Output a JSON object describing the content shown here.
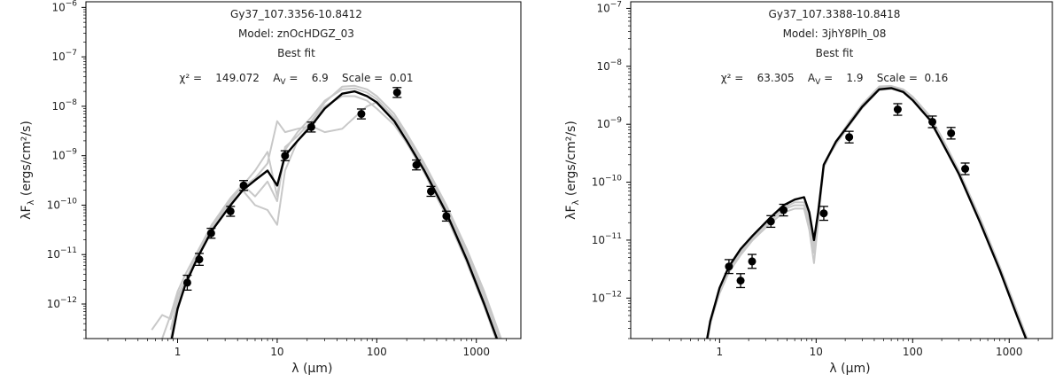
{
  "chart_data": [
    {
      "type": "line",
      "title_lines": [
        "Gy37_107.3356-10.8412",
        "Model: znOcHDGZ_03",
        "Best fit"
      ],
      "stats": {
        "chi2_label": "χ² =",
        "chi2": "149.072",
        "av_label": "A",
        "av_sub": "V",
        "av": "6.9",
        "scale_label": "Scale =",
        "scale": "0.01"
      },
      "xlabel": "λ (μm)",
      "ylabel": "λF",
      "ylabel_sub": "λ",
      "ylabel_unit": "(ergs/cm²/s)",
      "xscale": "log",
      "yscale": "log",
      "xlim": [
        0.12,
        2800
      ],
      "ylim": [
        2e-13,
        1.3e-06
      ],
      "xticks": [
        {
          "v": 1,
          "label": "1"
        },
        {
          "v": 10,
          "label": "10"
        },
        {
          "v": 100,
          "label": "100"
        },
        {
          "v": 1000,
          "label": "1000"
        }
      ],
      "yticks": [
        {
          "v": 1e-12,
          "label": "10",
          "exp": "−12"
        },
        {
          "v": 1e-11,
          "label": "10",
          "exp": "−11"
        },
        {
          "v": 1e-10,
          "label": "10",
          "exp": "−10"
        },
        {
          "v": 1e-09,
          "label": "10",
          "exp": "−9"
        },
        {
          "v": 1e-08,
          "label": "10",
          "exp": "−8"
        },
        {
          "v": 1e-07,
          "label": "10",
          "exp": "−7"
        },
        {
          "v": 1e-06,
          "label": "10",
          "exp": "−6"
        }
      ],
      "colors": {
        "best": "#000000",
        "alt": "#c8c8c8",
        "points": "#000000"
      },
      "series": [
        {
          "role": "best",
          "x": [
            0.85,
            1.0,
            1.2,
            1.6,
            2.2,
            3.4,
            4.5,
            6.0,
            8.0,
            10.0,
            12.0,
            16.0,
            22.0,
            30.0,
            45.0,
            60.0,
            80.0,
            100,
            150,
            200,
            300,
            500,
            800,
            1200,
            2000
          ],
          "y": [
            1.5e-13,
            8e-13,
            2.5e-12,
            9e-12,
            3e-11,
            1e-10,
            2e-10,
            3.2e-10,
            5e-10,
            2.5e-10,
            1e-09,
            2e-09,
            4e-09,
            9e-09,
            1.8e-08,
            2e-08,
            1.6e-08,
            1.2e-08,
            5e-09,
            2e-09,
            5e-10,
            7e-11,
            8e-12,
            1e-12,
            6e-14
          ]
        },
        {
          "role": "alt",
          "x": [
            0.55,
            0.7,
            0.85,
            1.0,
            1.2,
            1.6,
            2.2,
            3.4,
            4.5,
            6.0,
            8.0,
            10.0,
            12.0,
            16.0,
            22.0,
            30.0,
            45.0,
            60.0,
            80.0,
            100,
            150,
            200,
            300,
            500,
            800,
            1200,
            2000
          ],
          "y": [
            3e-13,
            6e-13,
            5e-13,
            1.5e-12,
            3e-12,
            1e-11,
            3.5e-11,
            1.2e-10,
            2.5e-10,
            5e-10,
            1.2e-09,
            1.5e-10,
            1.5e-09,
            2.5e-09,
            5e-09,
            1.2e-08,
            2.5e-08,
            2.6e-08,
            2.2e-08,
            1.6e-08,
            7e-09,
            2.8e-09,
            7e-10,
            1e-10,
            1.3e-11,
            1.8e-12,
            1e-13
          ]
        },
        {
          "role": "alt",
          "x": [
            0.7,
            0.85,
            1.0,
            1.2,
            1.6,
            2.2,
            3.4,
            4.5,
            6.0,
            8.0,
            10.0,
            12.0,
            16.0,
            22.0,
            30.0,
            45.0,
            60.0,
            80.0,
            100,
            150,
            200,
            300,
            500,
            800,
            1200,
            2000
          ],
          "y": [
            2e-13,
            6e-13,
            1.8e-12,
            4e-12,
            1.2e-11,
            4e-11,
            1.3e-10,
            2.3e-10,
            3.5e-10,
            7e-10,
            5e-09,
            3e-09,
            3.5e-09,
            4e-09,
            3e-09,
            3.5e-09,
            6e-09,
            1e-08,
            1.2e-08,
            5.5e-09,
            2.5e-09,
            6e-10,
            9e-11,
            1.1e-11,
            1.5e-12,
            8e-14
          ]
        },
        {
          "role": "alt",
          "x": [
            0.85,
            1.0,
            1.2,
            1.6,
            2.2,
            3.4,
            4.5,
            6.0,
            8.0,
            10.0,
            12.0,
            16.0,
            22.0,
            30.0,
            45.0,
            60.0,
            80.0,
            100,
            150,
            200,
            300,
            500,
            800,
            1200,
            2000
          ],
          "y": [
            3e-13,
            1.2e-12,
            3e-12,
            1e-11,
            3e-11,
            1.1e-10,
            2e-10,
            1e-10,
            8e-11,
            4e-11,
            5e-10,
            2e-09,
            4.5e-09,
            1e-08,
            1.6e-08,
            1.6e-08,
            1.3e-08,
            9e-09,
            4.2e-09,
            1.8e-09,
            4.5e-10,
            6e-11,
            7e-12,
            9e-13,
            5e-14
          ]
        },
        {
          "role": "alt",
          "x": [
            0.85,
            1.0,
            1.2,
            1.6,
            2.2,
            3.4,
            4.5,
            6.0,
            8.0,
            10.0,
            12.0,
            16.0,
            22.0,
            30.0,
            45.0,
            60.0,
            80.0,
            100,
            150,
            200,
            300,
            500,
            800,
            1200,
            2000
          ],
          "y": [
            2e-13,
            1e-12,
            3e-12,
            1.1e-11,
            4e-11,
            1.4e-10,
            2.6e-10,
            1.5e-10,
            3e-10,
            1.2e-10,
            1.3e-09,
            3e-09,
            6e-09,
            1.3e-08,
            2.2e-08,
            2.3e-08,
            1.9e-08,
            1.4e-08,
            6e-09,
            2.5e-09,
            6e-10,
            8e-11,
            1e-11,
            1.2e-12,
            7e-14
          ]
        }
      ],
      "points": [
        {
          "x": 1.25,
          "y": 2.7e-12,
          "err": 0.15
        },
        {
          "x": 1.65,
          "y": 8e-12,
          "err": 0.12
        },
        {
          "x": 2.17,
          "y": 2.7e-11,
          "err": 0.1
        },
        {
          "x": 3.4,
          "y": 7.5e-11,
          "err": 0.1
        },
        {
          "x": 4.6,
          "y": 2.5e-10,
          "err": 0.1
        },
        {
          "x": 12.0,
          "y": 1e-09,
          "err": 0.1
        },
        {
          "x": 22.0,
          "y": 3.8e-09,
          "err": 0.1
        },
        {
          "x": 70.0,
          "y": 7e-09,
          "err": 0.1
        },
        {
          "x": 160.0,
          "y": 1.9e-08,
          "err": 0.1
        },
        {
          "x": 250.0,
          "y": 6.5e-10,
          "err": 0.1
        },
        {
          "x": 350.0,
          "y": 1.9e-10,
          "err": 0.1
        },
        {
          "x": 500.0,
          "y": 6e-11,
          "err": 0.1
        }
      ]
    },
    {
      "type": "line",
      "title_lines": [
        "Gy37_107.3388-10.8418",
        "Model: 3jhY8Plh_08",
        "Best fit"
      ],
      "stats": {
        "chi2_label": "χ² =",
        "chi2": "63.305",
        "av_label": "A",
        "av_sub": "V",
        "av": "1.9",
        "scale_label": "Scale =",
        "scale": "0.16"
      },
      "xlabel": "λ (μm)",
      "ylabel": "λF",
      "ylabel_sub": "λ",
      "ylabel_unit": "(ergs/cm²/s)",
      "xscale": "log",
      "yscale": "log",
      "xlim": [
        0.12,
        2800
      ],
      "ylim": [
        2e-13,
        1.3e-07
      ],
      "xticks": [
        {
          "v": 1,
          "label": "1"
        },
        {
          "v": 10,
          "label": "10"
        },
        {
          "v": 100,
          "label": "100"
        },
        {
          "v": 1000,
          "label": "1000"
        }
      ],
      "yticks": [
        {
          "v": 1e-12,
          "label": "10",
          "exp": "−12"
        },
        {
          "v": 1e-11,
          "label": "10",
          "exp": "−11"
        },
        {
          "v": 1e-10,
          "label": "10",
          "exp": "−10"
        },
        {
          "v": 1e-09,
          "label": "10",
          "exp": "−9"
        },
        {
          "v": 1e-08,
          "label": "10",
          "exp": "−8"
        },
        {
          "v": 1e-07,
          "label": "10",
          "exp": "−7"
        }
      ],
      "colors": {
        "best": "#000000",
        "alt": "#c8c8c8",
        "points": "#000000"
      },
      "series": [
        {
          "role": "best",
          "x": [
            0.72,
            0.8,
            0.9,
            1.0,
            1.25,
            1.65,
            2.2,
            3.4,
            4.6,
            6.0,
            7.5,
            8.5,
            9.5,
            10.5,
            12.0,
            16.0,
            22.0,
            30.0,
            45.0,
            60.0,
            80.0,
            100,
            150,
            200,
            300,
            500,
            800,
            1200,
            1800
          ],
          "y": [
            1.5e-13,
            4e-13,
            8e-13,
            1.5e-12,
            3.5e-12,
            7e-12,
            1.2e-11,
            2.5e-11,
            4e-11,
            5e-11,
            5.5e-11,
            3e-11,
            1e-11,
            3e-11,
            2e-10,
            5e-10,
            1e-09,
            2e-09,
            4e-09,
            4.2e-09,
            3.6e-09,
            2.6e-09,
            1.2e-09,
            5e-10,
            1.4e-10,
            2e-11,
            3e-12,
            5e-13,
            9e-14
          ]
        },
        {
          "role": "alt",
          "x": [
            0.72,
            0.8,
            0.9,
            1.0,
            1.25,
            1.65,
            2.2,
            3.4,
            4.6,
            6.0,
            7.5,
            8.5,
            9.5,
            10.5,
            12.0,
            16.0,
            22.0,
            30.0,
            45.0,
            60.0,
            80.0,
            100,
            150,
            200,
            300,
            500,
            800,
            1200,
            1800
          ],
          "y": [
            1.2e-13,
            3.5e-13,
            7e-13,
            1.2e-12,
            2.8e-12,
            5.5e-12,
            1e-11,
            2e-11,
            3e-11,
            3.5e-11,
            3.5e-11,
            1.5e-11,
            4e-12,
            2e-11,
            1.8e-10,
            5e-10,
            1.1e-09,
            2.2e-09,
            4.5e-09,
            4.6e-09,
            4e-09,
            3e-09,
            1.4e-09,
            6e-10,
            1.6e-10,
            2.4e-11,
            3.5e-12,
            6e-13,
            1e-13
          ]
        },
        {
          "role": "alt",
          "x": [
            0.72,
            0.8,
            0.9,
            1.0,
            1.25,
            1.65,
            2.2,
            3.4,
            4.6,
            6.0,
            7.5,
            8.5,
            9.5,
            10.5,
            12.0,
            16.0,
            22.0,
            30.0,
            45.0,
            60.0,
            80.0,
            100,
            150,
            200,
            300,
            500,
            800,
            1200,
            1800
          ],
          "y": [
            1.3e-13,
            3.8e-13,
            7.5e-13,
            1.3e-12,
            3e-12,
            6e-12,
            1.1e-11,
            2.2e-11,
            3.4e-11,
            4e-11,
            4e-11,
            2e-11,
            6e-12,
            2.5e-11,
            1.9e-10,
            4.8e-10,
            1e-09,
            2e-09,
            4.2e-09,
            4.4e-09,
            3.9e-09,
            2.9e-09,
            1.3e-09,
            5.5e-10,
            1.5e-10,
            2.2e-11,
            3.2e-12,
            5.5e-13,
            9e-14
          ]
        },
        {
          "role": "alt",
          "x": [
            0.72,
            0.8,
            0.9,
            1.0,
            1.25,
            1.65,
            2.2,
            3.4,
            4.6,
            6.0,
            7.5,
            8.5,
            9.5,
            10.5,
            12.0,
            16.0,
            22.0,
            30.0,
            45.0,
            60.0,
            80.0,
            100,
            150,
            200,
            300,
            500,
            800,
            1200,
            1800
          ],
          "y": [
            1.4e-13,
            4e-13,
            8e-13,
            1.4e-12,
            3.2e-12,
            6.5e-12,
            1.1e-11,
            2.3e-11,
            3.6e-11,
            4.5e-11,
            4.5e-11,
            2.5e-11,
            8e-12,
            2.8e-11,
            2e-10,
            4.5e-10,
            9.5e-10,
            1.9e-09,
            3.9e-09,
            4.1e-09,
            3.7e-09,
            2.7e-09,
            1.2e-09,
            5e-10,
            1.4e-10,
            2e-11,
            3e-12,
            5e-13,
            9e-14
          ]
        }
      ],
      "points": [
        {
          "x": 1.25,
          "y": 3.5e-12,
          "err": 0.12
        },
        {
          "x": 1.65,
          "y": 2e-12,
          "err": 0.12
        },
        {
          "x": 2.17,
          "y": 4.3e-12,
          "err": 0.12
        },
        {
          "x": 3.4,
          "y": 2.1e-11,
          "err": 0.1
        },
        {
          "x": 4.6,
          "y": 3.3e-11,
          "err": 0.1
        },
        {
          "x": 12.0,
          "y": 2.9e-11,
          "err": 0.12
        },
        {
          "x": 22.0,
          "y": 6e-10,
          "err": 0.1
        },
        {
          "x": 70.0,
          "y": 1.8e-09,
          "err": 0.1
        },
        {
          "x": 160.0,
          "y": 1.1e-09,
          "err": 0.1
        },
        {
          "x": 250.0,
          "y": 7e-10,
          "err": 0.1
        },
        {
          "x": 350.0,
          "y": 1.7e-10,
          "err": 0.1
        }
      ]
    }
  ]
}
